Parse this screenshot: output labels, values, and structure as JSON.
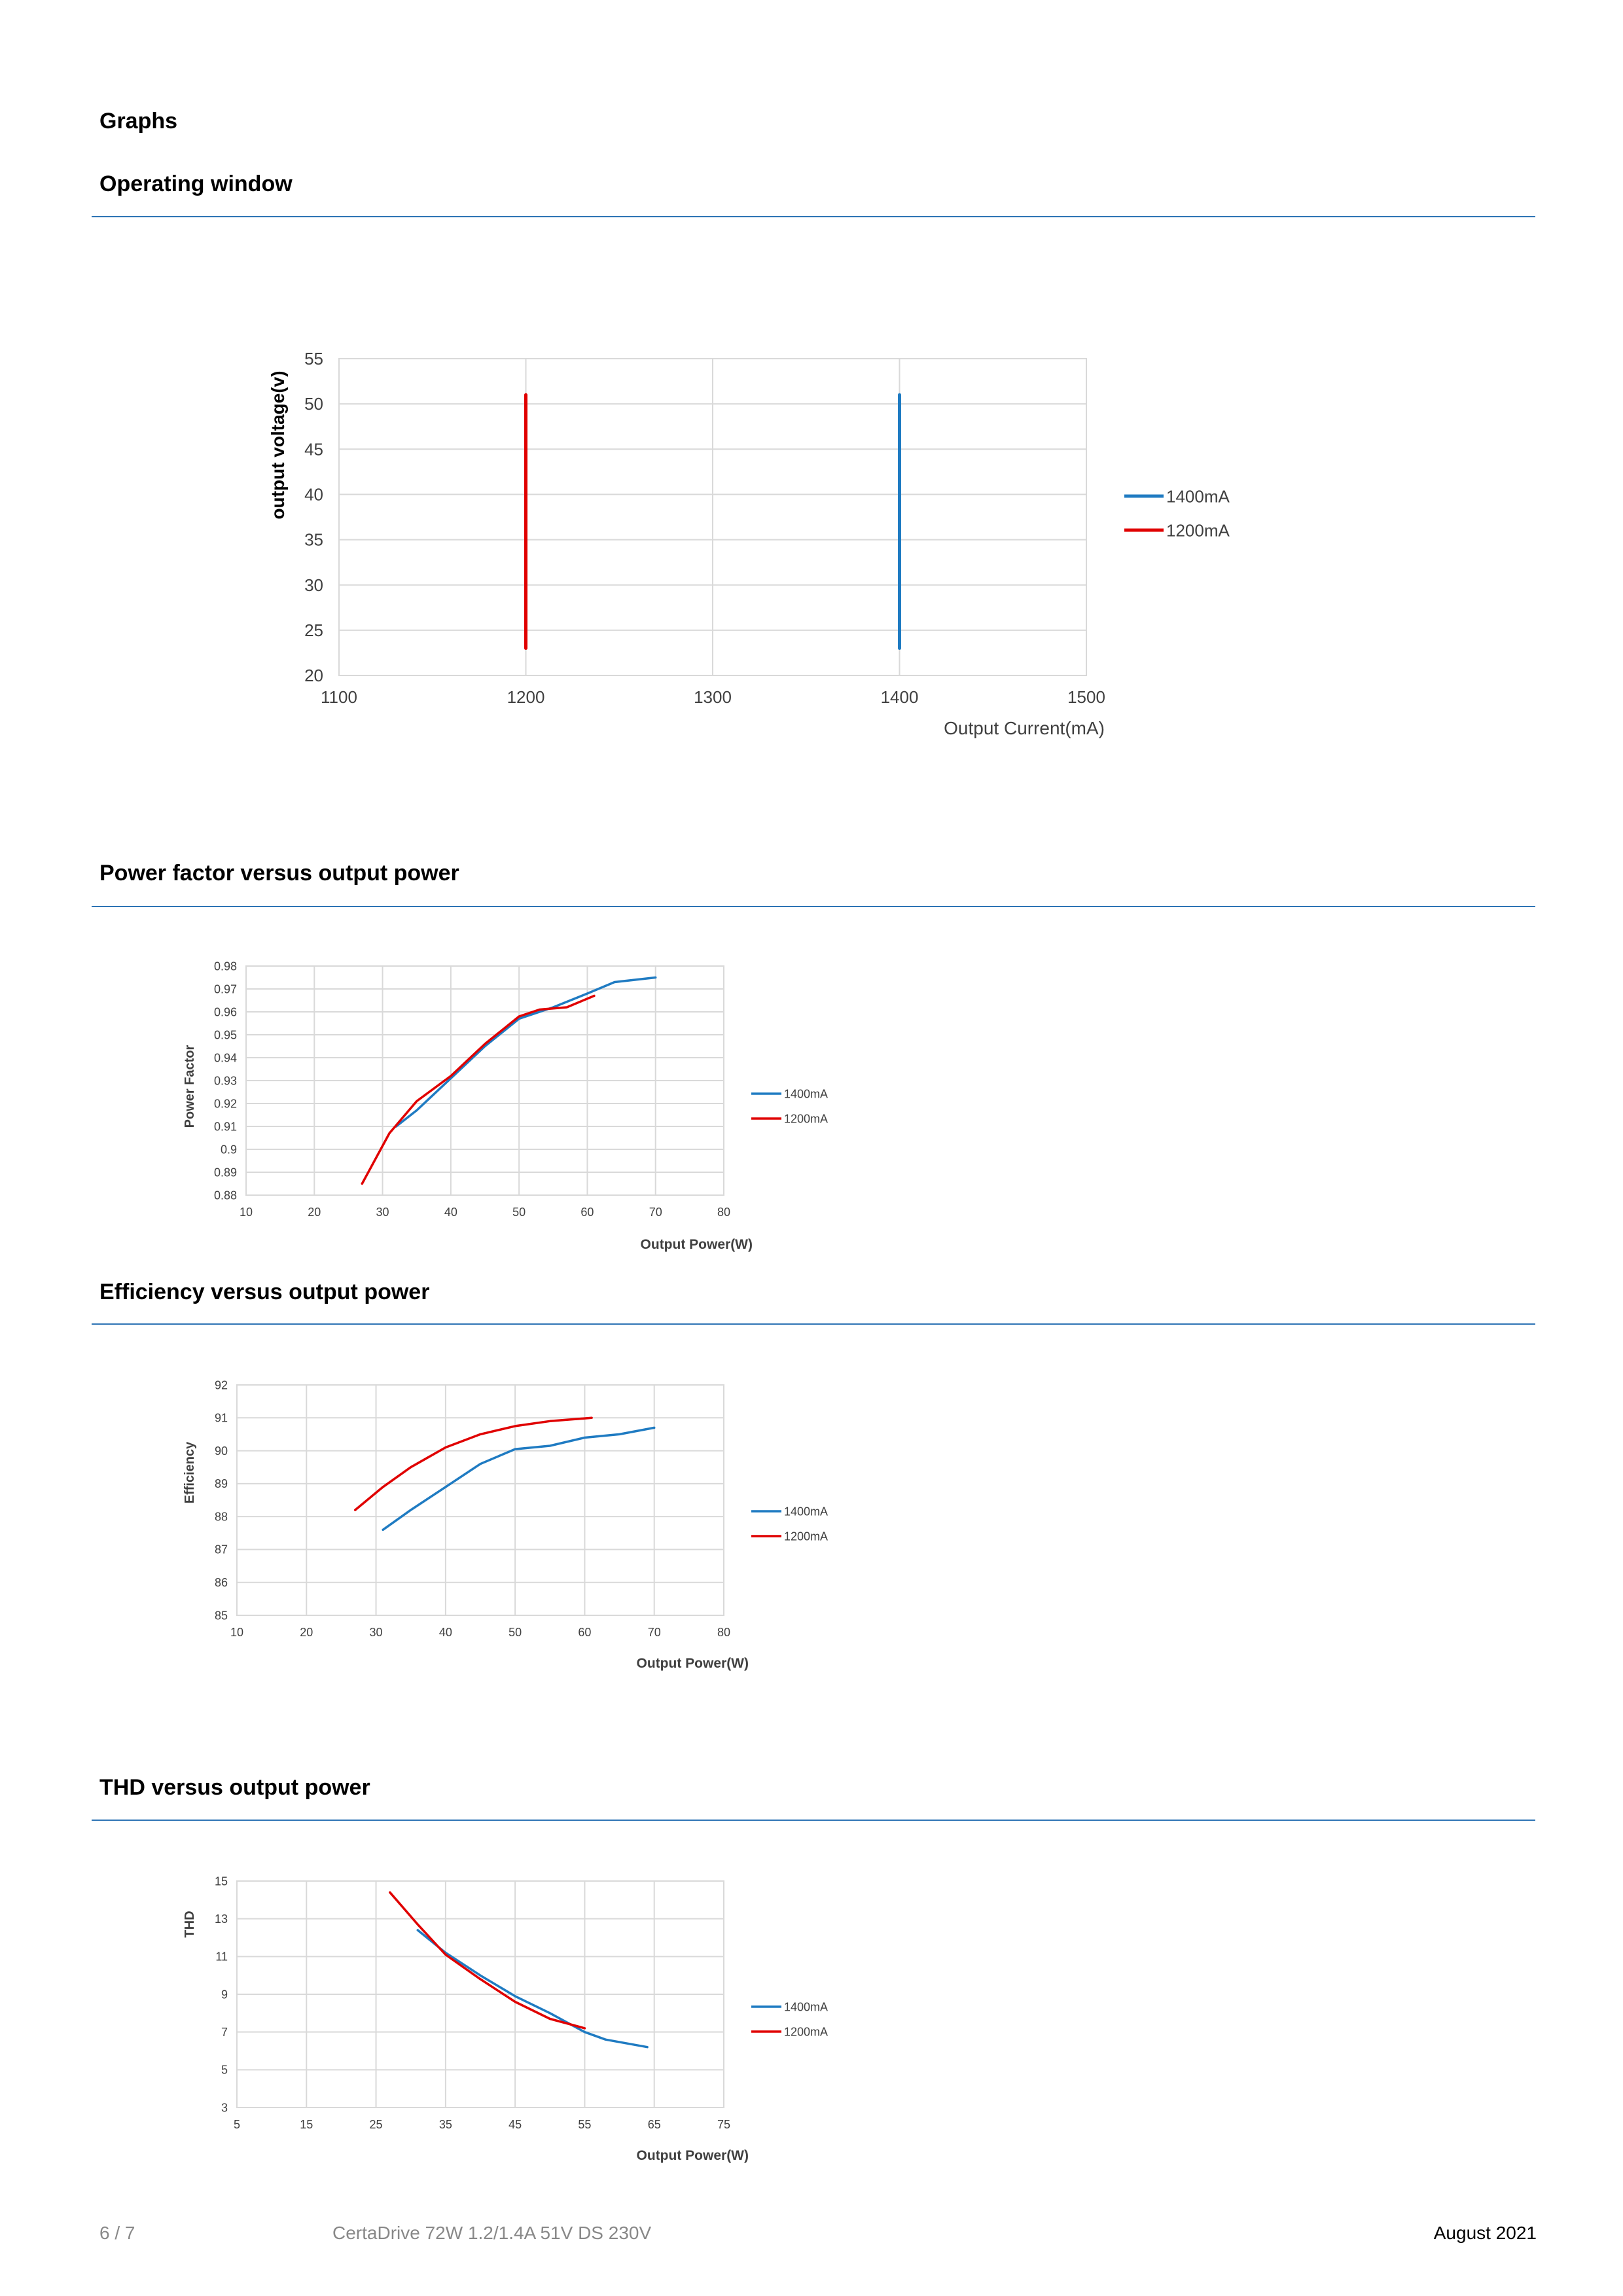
{
  "page": {
    "heading": "Graphs",
    "footer": {
      "page_number": "6 / 7",
      "product": "CertaDrive 72W 1.2/1.4A 51V DS 230V",
      "date": "August 2021"
    }
  },
  "colors": {
    "series_1400mA": "#1f7bc2",
    "series_1200mA": "#e00000",
    "rule": "#2e74b5",
    "grid": "#d9d9d9"
  },
  "sections": [
    {
      "title": "Operating window"
    },
    {
      "title": "Power factor versus output power"
    },
    {
      "title": "Efficiency versus output power"
    },
    {
      "title": "THD versus output power"
    }
  ],
  "chart_data": [
    {
      "type": "line",
      "xlabel": "Output Current(mA)",
      "ylabel": "output voltage(v)",
      "xlim": [
        1100,
        1500
      ],
      "ylim": [
        20,
        55
      ],
      "xticks": [
        "1100",
        "1200",
        "1300",
        "1400",
        "1500"
      ],
      "yticks": [
        "20",
        "25",
        "30",
        "35",
        "40",
        "45",
        "50",
        "55"
      ],
      "grid": true,
      "legend": "right",
      "series": [
        {
          "name": "1400mA",
          "color": "#1f7bc2",
          "points": [
            [
              1400,
              23
            ],
            [
              1400,
              51
            ]
          ]
        },
        {
          "name": "1200mA",
          "color": "#e00000",
          "points": [
            [
              1200,
              23
            ],
            [
              1200,
              51
            ]
          ]
        }
      ]
    },
    {
      "type": "line",
      "xlabel": "Output Power(W)",
      "ylabel": "Power Factor",
      "xlim": [
        10,
        80
      ],
      "ylim": [
        0.88,
        0.98
      ],
      "xticks": [
        "10",
        "20",
        "30",
        "40",
        "50",
        "60",
        "70",
        "80"
      ],
      "yticks": [
        "0.88",
        "0.89",
        "0.9",
        "0.91",
        "0.92",
        "0.93",
        "0.94",
        "0.95",
        "0.96",
        "0.97",
        "0.98"
      ],
      "grid": true,
      "legend": "right",
      "series": [
        {
          "name": "1400mA",
          "color": "#1f7bc2",
          "points": [
            [
              32,
              0.91
            ],
            [
              35,
              0.917
            ],
            [
              40,
              0.931
            ],
            [
              45,
              0.945
            ],
            [
              50,
              0.957
            ],
            [
              55,
              0.962
            ],
            [
              60,
              0.968
            ],
            [
              64,
              0.973
            ],
            [
              70,
              0.975
            ]
          ]
        },
        {
          "name": "1200mA",
          "color": "#e00000",
          "points": [
            [
              27,
              0.885
            ],
            [
              31,
              0.907
            ],
            [
              35,
              0.921
            ],
            [
              40,
              0.932
            ],
            [
              45,
              0.946
            ],
            [
              50,
              0.958
            ],
            [
              53,
              0.961
            ],
            [
              57,
              0.962
            ],
            [
              61,
              0.967
            ]
          ]
        }
      ]
    },
    {
      "type": "line",
      "xlabel": "Output Power(W)",
      "ylabel": "Efficiency",
      "xlim": [
        10,
        80
      ],
      "ylim": [
        85,
        92
      ],
      "xticks": [
        "10",
        "20",
        "30",
        "40",
        "50",
        "60",
        "70",
        "80"
      ],
      "yticks": [
        "85",
        "86",
        "87",
        "88",
        "89",
        "90",
        "91",
        "92"
      ],
      "grid": true,
      "legend": "right",
      "series": [
        {
          "name": "1400mA",
          "color": "#1f7bc2",
          "points": [
            [
              31,
              87.6
            ],
            [
              35,
              88.2
            ],
            [
              40,
              88.9
            ],
            [
              45,
              89.6
            ],
            [
              50,
              90.05
            ],
            [
              55,
              90.15
            ],
            [
              60,
              90.4
            ],
            [
              65,
              90.5
            ],
            [
              70,
              90.7
            ]
          ]
        },
        {
          "name": "1200mA",
          "color": "#e00000",
          "points": [
            [
              27,
              88.2
            ],
            [
              31,
              88.9
            ],
            [
              35,
              89.5
            ],
            [
              40,
              90.1
            ],
            [
              45,
              90.5
            ],
            [
              50,
              90.75
            ],
            [
              55,
              90.9
            ],
            [
              61,
              91.0
            ]
          ]
        }
      ]
    },
    {
      "type": "line",
      "xlabel": "Output Power(W)",
      "ylabel": "THD",
      "xlim": [
        5,
        75
      ],
      "ylim": [
        3,
        15
      ],
      "xticks": [
        "5",
        "15",
        "25",
        "35",
        "45",
        "55",
        "65",
        "75"
      ],
      "yticks": [
        "3",
        "5",
        "7",
        "9",
        "11",
        "13",
        "15"
      ],
      "grid": true,
      "legend": "right",
      "series": [
        {
          "name": "1400mA",
          "color": "#1f7bc2",
          "points": [
            [
              31,
              12.4
            ],
            [
              35,
              11.2
            ],
            [
              40,
              10.0
            ],
            [
              45,
              8.9
            ],
            [
              50,
              8.0
            ],
            [
              55,
              7.0
            ],
            [
              58,
              6.6
            ],
            [
              64,
              6.2
            ]
          ]
        },
        {
          "name": "1200mA",
          "color": "#e00000",
          "points": [
            [
              27,
              14.4
            ],
            [
              31,
              12.7
            ],
            [
              35,
              11.1
            ],
            [
              40,
              9.8
            ],
            [
              45,
              8.6
            ],
            [
              50,
              7.7
            ],
            [
              55,
              7.2
            ]
          ]
        }
      ]
    }
  ]
}
